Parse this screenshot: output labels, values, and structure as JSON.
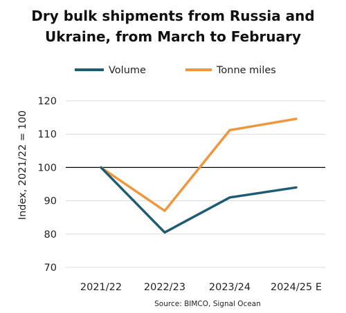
{
  "chart_data": {
    "type": "line",
    "title_lines": [
      "Dry bulk shipments from Russia and",
      "Ukraine, from March to February"
    ],
    "categories": [
      "2021/22",
      "2022/23",
      "2023/24",
      "2024/25 E"
    ],
    "series": [
      {
        "name": "Volume",
        "color": "#1f5c74",
        "values": [
          100,
          80.5,
          91,
          94
        ]
      },
      {
        "name": "Tonne miles",
        "color": "#f0963c",
        "values": [
          100,
          87,
          111.2,
          114.6
        ]
      }
    ],
    "xlabel": "",
    "ylabel": "Index, 2021/22 = 100",
    "ylim": [
      70,
      120
    ],
    "yticks": [
      "70",
      "80",
      "90",
      "100",
      "110",
      "120"
    ],
    "reference_line": {
      "value": 100,
      "color": "#000000"
    },
    "grid": true,
    "legend_position": "top",
    "source": "Source: BIMCO, Signal Ocean",
    "colors": {
      "grid": "#d9d9d9",
      "text": "#222222"
    }
  }
}
